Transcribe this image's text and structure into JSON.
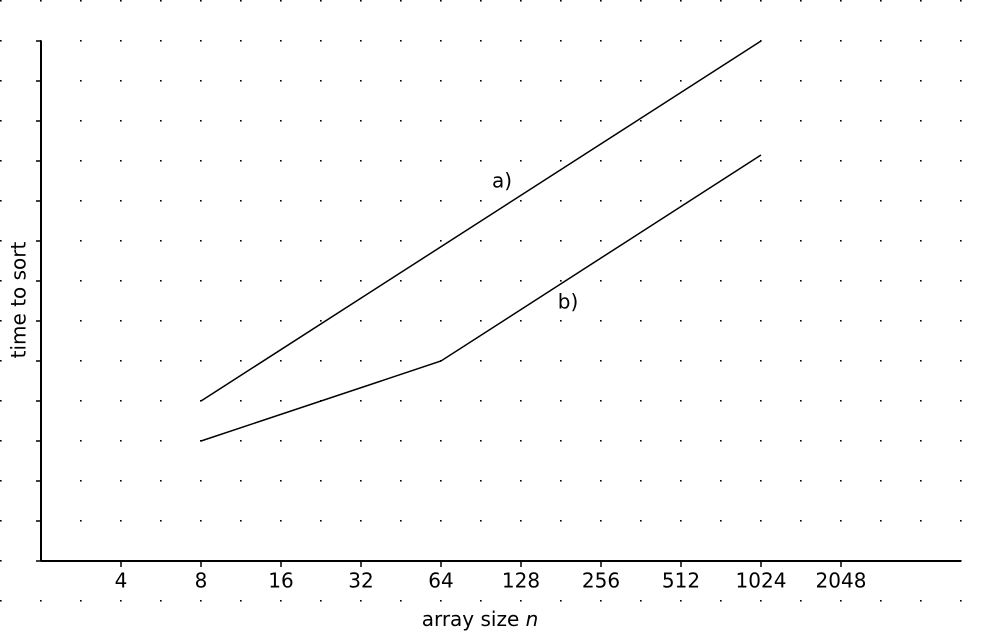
{
  "chart_data": {
    "type": "line",
    "xlabel": "array size",
    "xlabel_var": "n",
    "ylabel": "time to sort",
    "xscale": "log2",
    "xlim": [
      2,
      5793
    ],
    "xticks": [
      4,
      8,
      16,
      32,
      64,
      128,
      256,
      512,
      1024,
      2048
    ],
    "ylim": [
      0,
      13
    ],
    "yticks": [
      0,
      1,
      2,
      3,
      4,
      5,
      6,
      7,
      8,
      9,
      10,
      11,
      12,
      13
    ],
    "ytick_labels": false,
    "grid": "dots",
    "series": [
      {
        "name": "a)",
        "color": "#000000",
        "x": [
          8,
          1024
        ],
        "values": [
          4,
          13
        ]
      },
      {
        "name": "b)",
        "color": "#000000",
        "x": [
          8,
          64,
          1024
        ],
        "values": [
          3,
          5,
          10.15
        ]
      }
    ]
  }
}
